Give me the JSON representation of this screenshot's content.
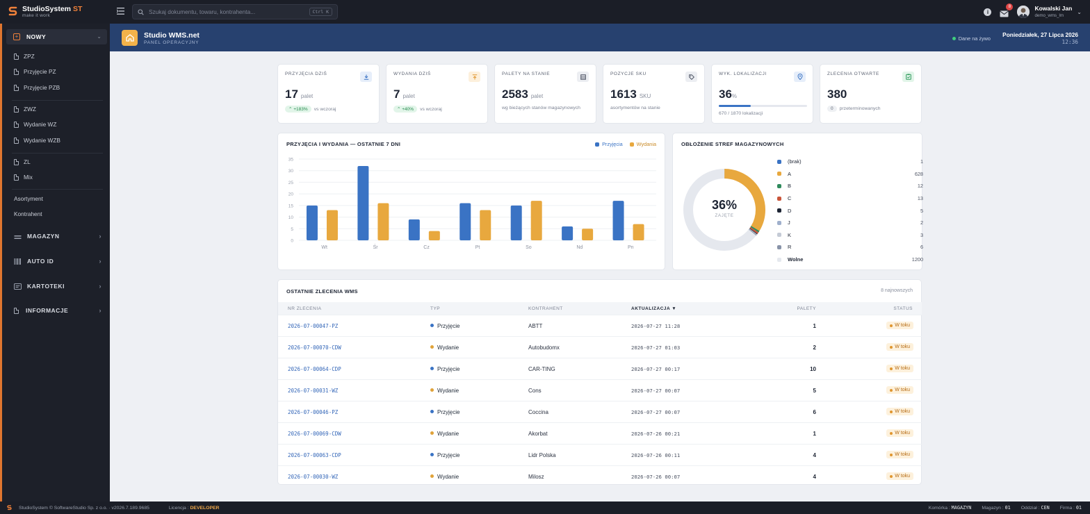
{
  "brand": {
    "name": "StudioSystem",
    "suffix": "ST",
    "tagline": "make it work"
  },
  "search": {
    "placeholder": "Szukaj dokumentu, towaru, kontrahenta...",
    "shortcut": "Ctrl K"
  },
  "user": {
    "name": "Kowalski Jan",
    "login": "demo_wms_lm",
    "mail_count": "8"
  },
  "sidebar": {
    "new_label": "NOWY",
    "items": [
      "ZPZ",
      "Przyjęcie PZ",
      "Przyjęcie PZB",
      "ZWZ",
      "Wydanie WZ",
      "Wydanie WZB",
      "ZL",
      "Mix"
    ],
    "links": [
      "Asortyment",
      "Kontrahent"
    ],
    "sections": [
      "MAGAZYN",
      "AUTO ID",
      "KARTOTEKI",
      "INFORMACJE"
    ]
  },
  "header": {
    "title": "Studio WMS.net",
    "subtitle": "PANEL OPERACYJNY",
    "live": "Dane na żywo",
    "date": "Poniedziałek, 27 Lipca 2026",
    "time": "12:36"
  },
  "kpis": [
    {
      "label": "PRZYJĘCIA DZIŚ",
      "value": "17",
      "unit": "palet",
      "badge": "+183%",
      "foot": "vs wczoraj",
      "icon": "download-icon",
      "color": "#3a73c4"
    },
    {
      "label": "WYDANIA DZIŚ",
      "value": "7",
      "unit": "palet",
      "badge": "+40%",
      "foot": "vs wczoraj",
      "icon": "upload-icon",
      "color": "#e0962f"
    },
    {
      "label": "PALETY NA STANIE",
      "value": "2583",
      "unit": "palet",
      "foot": "wg bieżących stanów magazynowych",
      "icon": "pallet-icon",
      "color": "#4b5262"
    },
    {
      "label": "POZYCJE SKU",
      "value": "1613",
      "unit": "SKU",
      "foot": "asortymentów na stanie",
      "icon": "tag-icon",
      "color": "#4b5262"
    },
    {
      "label": "WYK. LOKALIZACJI",
      "value": "36",
      "unit": "%",
      "foot": "670 / 1870 lokalizacji",
      "progress": 0.36,
      "icon": "location-icon",
      "color": "#3a73c4"
    },
    {
      "label": "ZLECENIA OTWARTE",
      "value": "380",
      "badge": "0",
      "foot": "przeterminowanych",
      "icon": "clipboard-icon",
      "color": "#2f9a5c"
    }
  ],
  "chart_data": [
    {
      "type": "bar",
      "title": "PRZYJĘCIA I WYDANIA — OSTATNIE 7 DNI",
      "categories": [
        "Wt",
        "Śr",
        "Cz",
        "Pt",
        "So",
        "Nd",
        "Pn"
      ],
      "series": [
        {
          "name": "Przyjęcia",
          "color": "#3a73c4",
          "values": [
            15,
            32,
            9,
            16,
            15,
            6,
            17
          ]
        },
        {
          "name": "Wydania",
          "color": "#e8a83e",
          "values": [
            13,
            16,
            4,
            13,
            17,
            5,
            7
          ]
        }
      ],
      "ylim": [
        0,
        35
      ],
      "yticks": [
        0,
        5,
        10,
        15,
        20,
        25,
        30,
        35
      ],
      "legend": "top-right",
      "grid": true
    },
    {
      "type": "pie",
      "title": "OBŁOŻENIE STREF MAGAZYNOWYCH",
      "center_value": "36%",
      "center_label": "ZAJĘTE",
      "slices": [
        {
          "label": "(brak)",
          "value": 1,
          "color": "#3a73c4"
        },
        {
          "label": "A",
          "value": 628,
          "color": "#e8a83e"
        },
        {
          "label": "B",
          "value": 12,
          "color": "#2f8a5c"
        },
        {
          "label": "C",
          "value": 13,
          "color": "#c9553a"
        },
        {
          "label": "D",
          "value": 5,
          "color": "#1d2433"
        },
        {
          "label": "J",
          "value": 2,
          "color": "#9fb0cc"
        },
        {
          "label": "K",
          "value": 3,
          "color": "#c5cbd6"
        },
        {
          "label": "R",
          "value": 6,
          "color": "#8893a8"
        },
        {
          "label": "Wolne",
          "value": 1200,
          "color": "#e5e8ee"
        }
      ]
    }
  ],
  "orders": {
    "title": "OSTATNIE ZLECENIA WMS",
    "note": "8 najnowszych",
    "columns": [
      "NR ZLECENIA",
      "TYP",
      "KONTRAHENT",
      "AKTUALIZACJA ▼",
      "PALETY",
      "STATUS"
    ],
    "rows": [
      {
        "nr": "2026-07-00047-PZ",
        "type": "Przyjęcie",
        "kontrahent": "ABTT",
        "updated": "2026-07-27 11:28",
        "palety": "1",
        "status": "W toku"
      },
      {
        "nr": "2026-07-00070-CDW",
        "type": "Wydanie",
        "kontrahent": "Autobudomx",
        "updated": "2026-07-27 01:03",
        "palety": "2",
        "status": "W toku"
      },
      {
        "nr": "2026-07-00064-CDP",
        "type": "Przyjęcie",
        "kontrahent": "CAR-TING",
        "updated": "2026-07-27 00:17",
        "palety": "10",
        "status": "W toku"
      },
      {
        "nr": "2026-07-00031-WZ",
        "type": "Wydanie",
        "kontrahent": "Cons",
        "updated": "2026-07-27 00:07",
        "palety": "5",
        "status": "W toku"
      },
      {
        "nr": "2026-07-00046-PZ",
        "type": "Przyjęcie",
        "kontrahent": "Coccina",
        "updated": "2026-07-27 00:07",
        "palety": "6",
        "status": "W toku"
      },
      {
        "nr": "2026-07-00069-CDW",
        "type": "Wydanie",
        "kontrahent": "Akorbat",
        "updated": "2026-07-26 00:21",
        "palety": "1",
        "status": "W toku"
      },
      {
        "nr": "2026-07-00063-CDP",
        "type": "Przyjęcie",
        "kontrahent": "Lidr Polska",
        "updated": "2026-07-26 00:11",
        "palety": "4",
        "status": "W toku"
      },
      {
        "nr": "2026-07-00030-WZ",
        "type": "Wydanie",
        "kontrahent": "Milosz",
        "updated": "2026-07-26 00:07",
        "palety": "4",
        "status": "W toku"
      }
    ]
  },
  "footer": {
    "copyright": "StudioSystem © SoftwareStudio Sp. z o.o. · v2026.7.189.9685",
    "license_label": "Licencja :",
    "license_value": "DEVELOPER",
    "komorka_label": "Komórka :",
    "komorka_value": "MAGAZYN",
    "magazyn_label": "Magazyn :",
    "magazyn_value": "01",
    "oddzial_label": "Oddział :",
    "oddzial_value": "CEN",
    "firma_label": "Firma :",
    "firma_value": "01"
  }
}
